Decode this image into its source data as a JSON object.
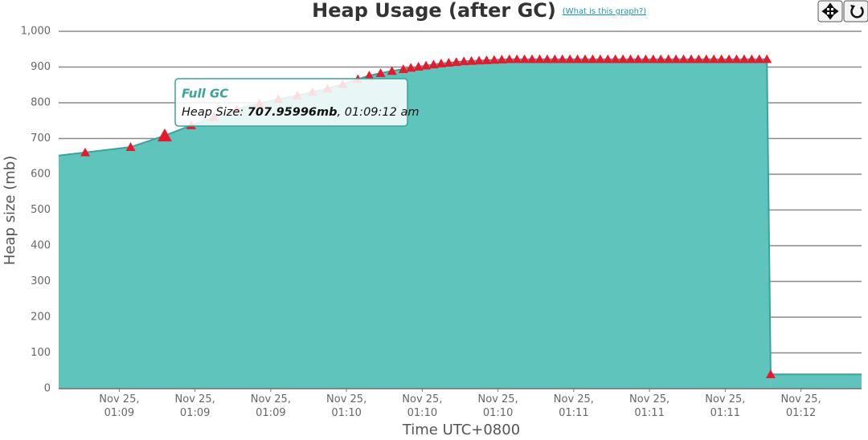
{
  "chart_data": {
    "type": "area",
    "title": "Heap Usage (after GC)",
    "link": "(What is this graph?)",
    "x_label": "Time UTC+0800",
    "y_label": "Heap size (mb)",
    "color": "#5fc4bc",
    "line_color": "#3aa39b",
    "marker": "triangle",
    "marker_color": "#e8192c",
    "grid": true,
    "xlim": [
      "01:08:44",
      "01:12:16"
    ],
    "xticks": [
      {
        "value": "01:09:00",
        "label": "Nov 25, 01:09"
      },
      {
        "value": "01:09:20",
        "label": "Nov 25, 01:09"
      },
      {
        "value": "01:09:40",
        "label": "Nov 25, 01:09"
      },
      {
        "value": "01:10:00",
        "label": "Nov 25, 01:10"
      },
      {
        "value": "01:10:20",
        "label": "Nov 25, 01:10"
      },
      {
        "value": "01:10:40",
        "label": "Nov 25, 01:10"
      },
      {
        "value": "01:11:00",
        "label": "Nov 25, 01:11"
      },
      {
        "value": "01:11:20",
        "label": "Nov 25, 01:11"
      },
      {
        "value": "01:11:40",
        "label": "Nov 25, 01:11"
      },
      {
        "value": "01:12:00",
        "label": "Nov 25, 01:12"
      }
    ],
    "ylim": [
      0,
      1000
    ],
    "yticks": [
      0,
      100,
      200,
      300,
      400,
      500,
      600,
      700,
      800,
      900,
      {
        "value": 1000,
        "label": "1,000"
      }
    ],
    "x": [
      "01:08:51",
      "01:09:03",
      "01:09:12",
      "01:09:19",
      "01:09:25",
      "01:09:31",
      "01:09:37",
      "01:09:42",
      "01:09:47",
      "01:09:51",
      "01:09:55",
      "01:09:59",
      "01:10:03",
      "01:10:06",
      "01:10:09",
      "01:10:12",
      "01:10:15",
      "01:10:17",
      "01:10:19",
      "01:10:21",
      "01:10:23",
      "01:10:25",
      "01:10:27",
      "01:10:29",
      "01:10:31",
      "01:10:33",
      "01:10:35",
      "01:10:37",
      "01:10:39",
      "01:10:41",
      "01:10:43",
      "01:10:45",
      "01:10:47",
      "01:10:49",
      "01:10:51",
      "01:10:53",
      "01:10:55",
      "01:10:57",
      "01:10:59",
      "01:11:01",
      "01:11:03",
      "01:11:05",
      "01:11:07",
      "01:11:09",
      "01:11:11",
      "01:11:13",
      "01:11:15",
      "01:11:17",
      "01:11:19",
      "01:11:21",
      "01:11:23",
      "01:11:25",
      "01:11:27",
      "01:11:29",
      "01:11:31",
      "01:11:33",
      "01:11:35",
      "01:11:37",
      "01:11:39",
      "01:11:41",
      "01:11:43",
      "01:11:45",
      "01:11:47",
      "01:11:49",
      "01:11:51",
      "01:11:52"
    ],
    "values": [
      661,
      676,
      707.96,
      737,
      760,
      782,
      798,
      810,
      820,
      830,
      840,
      852,
      866,
      876,
      883,
      889,
      894,
      898,
      901,
      904,
      907,
      910,
      912,
      914,
      916,
      917,
      918,
      919,
      920,
      921,
      922,
      922,
      922,
      922,
      922,
      922,
      922,
      922,
      922,
      922,
      922,
      922,
      922,
      922,
      922,
      922,
      922,
      922,
      922,
      922,
      922,
      922,
      922,
      922,
      922,
      922,
      922,
      922,
      922,
      922,
      922,
      922,
      922,
      922,
      922,
      40
    ],
    "tooltip": {
      "title": "Full GC",
      "label": "Heap Size: ",
      "value": "707.95996mb",
      "time": ", 01:09:12 am"
    }
  }
}
